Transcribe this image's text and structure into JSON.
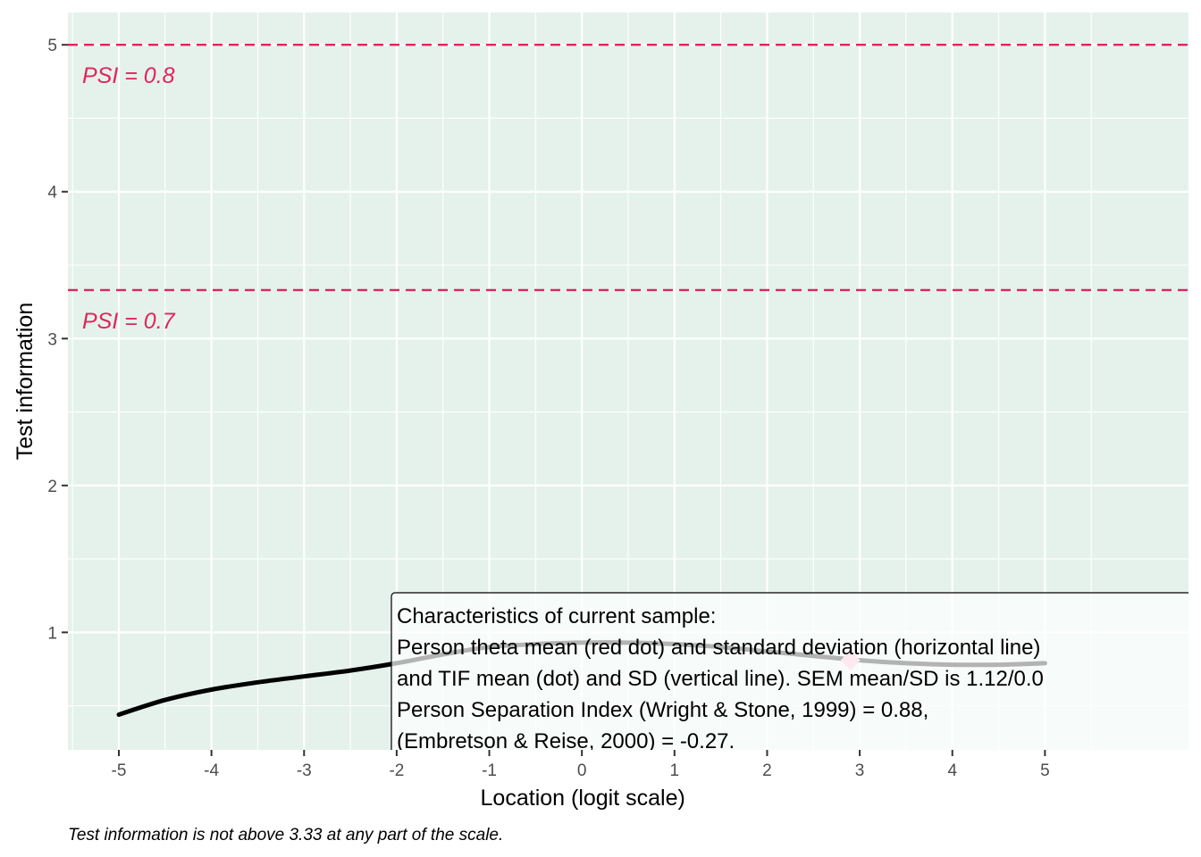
{
  "chart_data": {
    "type": "line",
    "xlabel": "Location (logit scale)",
    "ylabel": "Test information",
    "xlim": [
      -5.55,
      6.55
    ],
    "ylim": [
      0.2,
      5.22
    ],
    "x_ticks": [
      -5,
      -4,
      -3,
      -2,
      -1,
      0,
      1,
      2,
      3,
      4,
      5
    ],
    "x_tick_labels": [
      "-5",
      "-4",
      "-3",
      "-2",
      "-1",
      "0",
      "1",
      "2",
      "3",
      "4",
      "5"
    ],
    "y_ticks": [
      1,
      2,
      3,
      4,
      5
    ],
    "y_tick_labels": [
      "1",
      "2",
      "3",
      "4",
      "5"
    ],
    "grid": true,
    "series": [
      {
        "x": [
          -5,
          -4.5,
          -4,
          -3.5,
          -3,
          -2.5,
          -2,
          -1.5,
          -1,
          -0.5,
          0,
          0.5,
          1,
          1.5,
          2,
          2.5,
          3,
          3.5,
          4,
          4.5,
          5
        ],
        "y": [
          0.44,
          0.54,
          0.61,
          0.66,
          0.7,
          0.74,
          0.79,
          0.85,
          0.9,
          0.92,
          0.93,
          0.93,
          0.92,
          0.9,
          0.87,
          0.84,
          0.81,
          0.79,
          0.78,
          0.78,
          0.79
        ],
        "color": "#000000"
      }
    ],
    "reference_lines": [
      {
        "y": 5.0,
        "label": "PSI = 0.8",
        "color": "#e0245e"
      },
      {
        "y": 3.33,
        "label": "PSI = 0.7",
        "color": "#e0245e"
      }
    ],
    "points": [
      {
        "x": 2.9,
        "y": 0.81,
        "color": "#f7b6c8"
      }
    ],
    "annotation": {
      "lines": [
        "Characteristics of current sample:",
        "Person theta mean (red dot) and standard deviation (horizontal line)",
        "and TIF mean (dot) and SD (vertical line). SEM mean/SD is 1.12/0.0",
        "Person Separation Index (Wright & Stone, 1999) = 0.88,",
        "(Embretson & Reise, 2000) = -0.27."
      ]
    },
    "caption": "Test information is not above 3.33 at any part of the scale.",
    "colors": {
      "panel_bg": "#e5f2ec",
      "grid": "#ffffff",
      "reference": "#e0245e",
      "curve": "#000000"
    }
  }
}
